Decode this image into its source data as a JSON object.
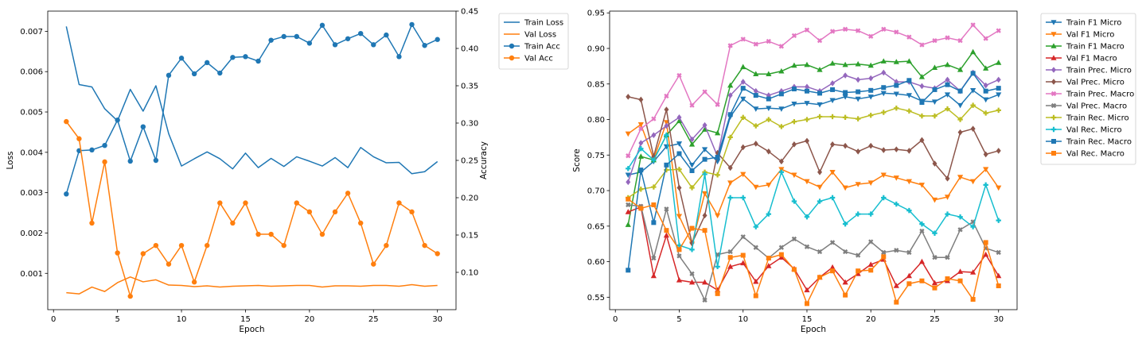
{
  "chart_data": [
    {
      "type": "line",
      "xlabel": "Epoch",
      "ylabel": "Loss",
      "ylabel_right": "Accuracy",
      "xlim": [
        -0.45,
        31.45
      ],
      "ylim": [
        0.0001,
        0.0075
      ],
      "ylim_right": [
        0.05,
        0.45
      ],
      "xticks": [
        0,
        5,
        10,
        15,
        20,
        25,
        30
      ],
      "yticks": [
        0.001,
        0.002,
        0.003,
        0.004,
        0.005,
        0.006,
        0.007
      ],
      "yticks_labels": [
        "0.001",
        "0.002",
        "0.003",
        "0.004",
        "0.005",
        "0.006",
        "0.007"
      ],
      "yticks_right": [
        0.1,
        0.15,
        0.2,
        0.25,
        0.3,
        0.35,
        0.4,
        0.45
      ],
      "yticks_right_labels": [
        "0.10",
        "0.15",
        "0.20",
        "0.25",
        "0.30",
        "0.35",
        "0.40",
        "0.45"
      ],
      "grid": false,
      "legend_position": "outside-top-right",
      "x": [
        1,
        2,
        3,
        4,
        5,
        6,
        7,
        8,
        9,
        10,
        11,
        12,
        13,
        14,
        15,
        16,
        17,
        18,
        19,
        20,
        21,
        22,
        23,
        24,
        25,
        26,
        27,
        28,
        29,
        30
      ],
      "series": [
        {
          "name": "Train Loss",
          "axis": "left",
          "color": "#1f77b4",
          "marker": "none",
          "values": [
            0.00712,
            0.00568,
            0.00562,
            0.00508,
            0.00478,
            0.00556,
            0.00502,
            0.00565,
            0.00446,
            0.00366,
            0.00384,
            0.00401,
            0.00384,
            0.00359,
            0.00398,
            0.00362,
            0.00385,
            0.00365,
            0.00389,
            0.00378,
            0.00366,
            0.00387,
            0.00362,
            0.00412,
            0.00389,
            0.00374,
            0.00375,
            0.00347,
            0.00352,
            0.00377
          ]
        },
        {
          "name": "Val Loss",
          "axis": "left",
          "color": "#ff7f0e",
          "marker": "none",
          "values": [
            0.00052,
            0.00049,
            0.00066,
            0.00055,
            0.00077,
            0.00091,
            0.00079,
            0.00084,
            0.00071,
            0.0007,
            0.00067,
            0.00069,
            0.00066,
            0.00068,
            0.00069,
            0.0007,
            0.00068,
            0.00069,
            0.0007,
            0.0007,
            0.00066,
            0.00069,
            0.00069,
            0.00068,
            0.0007,
            0.0007,
            0.00068,
            0.00072,
            0.00068,
            0.0007
          ]
        },
        {
          "name": "Train Acc",
          "axis": "right",
          "color": "#1f77b4",
          "marker": "circle",
          "values": [
            0.205,
            0.263,
            0.264,
            0.27,
            0.304,
            0.249,
            0.295,
            0.25,
            0.364,
            0.387,
            0.366,
            0.381,
            0.367,
            0.388,
            0.389,
            0.383,
            0.411,
            0.416,
            0.416,
            0.407,
            0.431,
            0.405,
            0.413,
            0.42,
            0.405,
            0.418,
            0.389,
            0.432,
            0.404,
            0.412
          ]
        },
        {
          "name": "Val Acc",
          "axis": "right",
          "color": "#ff7f0e",
          "marker": "circle",
          "values": [
            0.302,
            0.279,
            0.166,
            0.248,
            0.126,
            0.068,
            0.125,
            0.136,
            0.111,
            0.136,
            0.087,
            0.136,
            0.193,
            0.166,
            0.193,
            0.151,
            0.151,
            0.136,
            0.193,
            0.181,
            0.151,
            0.181,
            0.206,
            0.166,
            0.111,
            0.136,
            0.193,
            0.181,
            0.136,
            0.125
          ]
        }
      ]
    },
    {
      "type": "line",
      "xlabel": "Epoch",
      "ylabel": "Score",
      "xlim": [
        -0.45,
        31.45
      ],
      "ylim": [
        0.5325,
        0.9525
      ],
      "xticks": [
        0,
        5,
        10,
        15,
        20,
        25,
        30
      ],
      "yticks": [
        0.55,
        0.6,
        0.65,
        0.7,
        0.75,
        0.8,
        0.85,
        0.9,
        0.95
      ],
      "yticks_labels": [
        "0.55",
        "0.60",
        "0.65",
        "0.70",
        "0.75",
        "0.80",
        "0.85",
        "0.90",
        "0.95"
      ],
      "grid": false,
      "legend_position": "outside-top-right",
      "x": [
        1,
        2,
        3,
        4,
        5,
        6,
        7,
        8,
        9,
        10,
        11,
        12,
        13,
        14,
        15,
        16,
        17,
        18,
        19,
        20,
        21,
        22,
        23,
        24,
        25,
        26,
        27,
        28,
        29,
        30
      ],
      "series": [
        {
          "name": "Train F1 Micro",
          "color": "#1f77b4",
          "marker": "triangle_down",
          "values": [
            0.722,
            0.726,
            0.741,
            0.762,
            0.766,
            0.736,
            0.758,
            0.741,
            0.804,
            0.829,
            0.815,
            0.816,
            0.815,
            0.822,
            0.823,
            0.821,
            0.827,
            0.832,
            0.829,
            0.832,
            0.837,
            0.836,
            0.834,
            0.826,
            0.825,
            0.835,
            0.82,
            0.841,
            0.828,
            0.835
          ]
        },
        {
          "name": "Val F1 Micro",
          "color": "#ff7f0e",
          "marker": "triangle_down",
          "values": [
            0.78,
            0.793,
            0.744,
            0.796,
            0.664,
            0.625,
            0.696,
            0.665,
            0.711,
            0.723,
            0.705,
            0.708,
            0.73,
            0.722,
            0.713,
            0.705,
            0.726,
            0.704,
            0.709,
            0.711,
            0.722,
            0.718,
            0.713,
            0.708,
            0.687,
            0.691,
            0.719,
            0.713,
            0.73,
            0.704
          ]
        },
        {
          "name": "Train F1 Macro",
          "color": "#2ca02c",
          "marker": "triangle_up",
          "values": [
            0.652,
            0.748,
            0.743,
            0.778,
            0.798,
            0.765,
            0.786,
            0.781,
            0.848,
            0.874,
            0.864,
            0.864,
            0.868,
            0.876,
            0.877,
            0.87,
            0.879,
            0.877,
            0.878,
            0.876,
            0.882,
            0.881,
            0.882,
            0.86,
            0.873,
            0.877,
            0.87,
            0.895,
            0.872,
            0.88
          ]
        },
        {
          "name": "Val F1 Macro",
          "color": "#d62728",
          "marker": "triangle_up",
          "values": [
            0.67,
            0.677,
            0.58,
            0.637,
            0.574,
            0.571,
            0.571,
            0.56,
            0.593,
            0.598,
            0.572,
            0.594,
            0.606,
            0.59,
            0.56,
            0.578,
            0.592,
            0.571,
            0.583,
            0.596,
            0.603,
            0.566,
            0.58,
            0.6,
            0.57,
            0.573,
            0.586,
            0.585,
            0.61,
            0.58
          ]
        },
        {
          "name": "Train Prec. Micro",
          "color": "#9467bd",
          "marker": "diamond",
          "values": [
            0.712,
            0.767,
            0.778,
            0.791,
            0.803,
            0.772,
            0.792,
            0.748,
            0.834,
            0.853,
            0.84,
            0.834,
            0.84,
            0.846,
            0.846,
            0.84,
            0.851,
            0.862,
            0.856,
            0.858,
            0.866,
            0.853,
            0.853,
            0.847,
            0.844,
            0.856,
            0.84,
            0.866,
            0.848,
            0.856
          ]
        },
        {
          "name": "Val Prec. Micro",
          "color": "#8c564b",
          "marker": "diamond",
          "values": [
            0.832,
            0.828,
            0.748,
            0.814,
            0.704,
            0.626,
            0.665,
            0.753,
            0.732,
            0.761,
            0.766,
            0.755,
            0.741,
            0.765,
            0.77,
            0.726,
            0.765,
            0.763,
            0.755,
            0.763,
            0.757,
            0.758,
            0.756,
            0.771,
            0.738,
            0.717,
            0.782,
            0.787,
            0.751,
            0.756
          ]
        },
        {
          "name": "Train Prec. Macro",
          "color": "#e377c2",
          "marker": "x",
          "values": [
            0.749,
            0.787,
            0.801,
            0.833,
            0.862,
            0.82,
            0.839,
            0.821,
            0.904,
            0.913,
            0.906,
            0.91,
            0.903,
            0.918,
            0.926,
            0.911,
            0.924,
            0.927,
            0.925,
            0.917,
            0.927,
            0.923,
            0.916,
            0.905,
            0.911,
            0.915,
            0.911,
            0.933,
            0.914,
            0.925
          ]
        },
        {
          "name": "Val Prec. Macro",
          "color": "#7f7f7f",
          "marker": "x",
          "values": [
            0.68,
            0.678,
            0.605,
            0.674,
            0.608,
            0.583,
            0.546,
            0.61,
            0.614,
            0.635,
            0.62,
            0.605,
            0.62,
            0.632,
            0.621,
            0.614,
            0.627,
            0.614,
            0.609,
            0.628,
            0.613,
            0.616,
            0.613,
            0.643,
            0.606,
            0.606,
            0.645,
            0.656,
            0.619,
            0.613
          ]
        },
        {
          "name": "Train Rec. Micro",
          "color": "#bcbd22",
          "marker": "plus",
          "values": [
            0.69,
            0.702,
            0.705,
            0.729,
            0.73,
            0.704,
            0.726,
            0.722,
            0.775,
            0.803,
            0.791,
            0.8,
            0.79,
            0.797,
            0.8,
            0.804,
            0.804,
            0.803,
            0.801,
            0.806,
            0.81,
            0.816,
            0.812,
            0.805,
            0.805,
            0.815,
            0.8,
            0.82,
            0.809,
            0.813
          ]
        },
        {
          "name": "Val Rec. Micro",
          "color": "#17becf",
          "marker": "plus",
          "values": [
            0.731,
            0.759,
            0.743,
            0.778,
            0.623,
            0.617,
            0.723,
            0.593,
            0.69,
            0.69,
            0.649,
            0.667,
            0.726,
            0.685,
            0.663,
            0.685,
            0.69,
            0.653,
            0.667,
            0.667,
            0.69,
            0.681,
            0.672,
            0.653,
            0.64,
            0.667,
            0.663,
            0.649,
            0.708,
            0.658
          ]
        },
        {
          "name": "Train Rec. Macro",
          "color": "#1f77b4",
          "marker": "square",
          "values": [
            0.588,
            0.729,
            0.655,
            0.736,
            0.752,
            0.728,
            0.744,
            0.747,
            0.807,
            0.844,
            0.834,
            0.829,
            0.836,
            0.843,
            0.84,
            0.837,
            0.842,
            0.838,
            0.839,
            0.841,
            0.845,
            0.848,
            0.855,
            0.824,
            0.842,
            0.849,
            0.84,
            0.865,
            0.84,
            0.844
          ]
        },
        {
          "name": "Val Rec. Macro",
          "color": "#ff7f0e",
          "marker": "square",
          "values": [
            0.688,
            0.675,
            0.68,
            0.644,
            0.617,
            0.647,
            0.644,
            0.555,
            0.606,
            0.609,
            0.552,
            0.605,
            0.61,
            0.589,
            0.541,
            0.578,
            0.587,
            0.553,
            0.587,
            0.588,
            0.607,
            0.543,
            0.569,
            0.573,
            0.563,
            0.576,
            0.573,
            0.547,
            0.627,
            0.566
          ]
        }
      ]
    }
  ]
}
